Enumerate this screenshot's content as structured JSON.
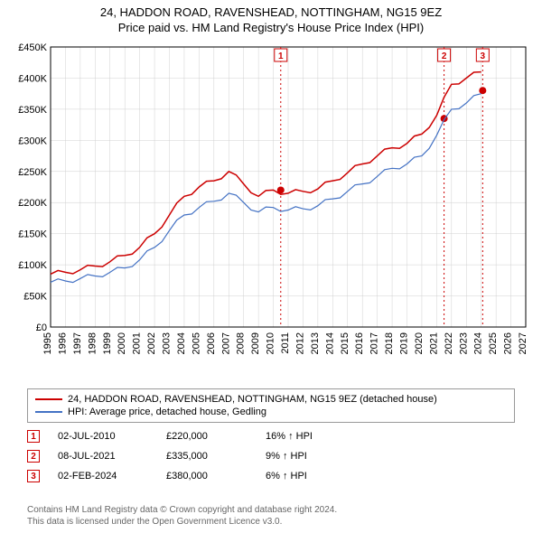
{
  "title_line1": "24, HADDON ROAD, RAVENSHEAD, NOTTINGHAM, NG15 9EZ",
  "title_line2": "Price paid vs. HM Land Registry's House Price Index (HPI)",
  "chart": {
    "type": "line",
    "background_color": "#ffffff",
    "grid_color": "#d0d0d0",
    "axis_color": "#000000",
    "label_fontsize": 11,
    "x": {
      "min": 1995,
      "max": 2027,
      "ticks": [
        1995,
        1996,
        1997,
        1998,
        1999,
        2000,
        2001,
        2002,
        2003,
        2004,
        2005,
        2006,
        2007,
        2008,
        2009,
        2010,
        2011,
        2012,
        2013,
        2014,
        2015,
        2016,
        2017,
        2018,
        2019,
        2020,
        2021,
        2022,
        2023,
        2024,
        2025,
        2026,
        2027
      ]
    },
    "y": {
      "min": 0,
      "max": 450000,
      "step": 50000,
      "ticks": [
        "£0",
        "£50K",
        "£100K",
        "£150K",
        "£200K",
        "£250K",
        "£300K",
        "£350K",
        "£400K",
        "£450K"
      ]
    },
    "series": [
      {
        "name": "24, HADDON ROAD, RAVENSHEAD, NOTTINGHAM, NG15 9EZ (detached house)",
        "color": "#cc0000",
        "width": 1.5,
        "data": [
          [
            1995,
            85000
          ],
          [
            1996,
            88000
          ],
          [
            1997,
            92000
          ],
          [
            1998,
            98000
          ],
          [
            1999,
            105000
          ],
          [
            2000,
            115000
          ],
          [
            2001,
            128000
          ],
          [
            2002,
            150000
          ],
          [
            2003,
            180000
          ],
          [
            2004,
            210000
          ],
          [
            2005,
            225000
          ],
          [
            2006,
            235000
          ],
          [
            2007,
            250000
          ],
          [
            2008,
            230000
          ],
          [
            2009,
            210000
          ],
          [
            2010,
            220000
          ],
          [
            2011,
            215000
          ],
          [
            2012,
            218000
          ],
          [
            2013,
            222000
          ],
          [
            2014,
            235000
          ],
          [
            2015,
            248000
          ],
          [
            2016,
            262000
          ],
          [
            2017,
            275000
          ],
          [
            2018,
            288000
          ],
          [
            2019,
            295000
          ],
          [
            2020,
            310000
          ],
          [
            2021,
            340000
          ],
          [
            2022,
            390000
          ],
          [
            2023,
            400000
          ],
          [
            2024,
            410000
          ]
        ]
      },
      {
        "name": "HPI: Average price, detached house, Gedling",
        "color": "#4472c4",
        "width": 1.2,
        "data": [
          [
            1995,
            72000
          ],
          [
            1996,
            74000
          ],
          [
            1997,
            78000
          ],
          [
            1998,
            82000
          ],
          [
            1999,
            88000
          ],
          [
            2000,
            95000
          ],
          [
            2001,
            108000
          ],
          [
            2002,
            128000
          ],
          [
            2003,
            155000
          ],
          [
            2004,
            180000
          ],
          [
            2005,
            192000
          ],
          [
            2006,
            202000
          ],
          [
            2007,
            215000
          ],
          [
            2008,
            200000
          ],
          [
            2009,
            185000
          ],
          [
            2010,
            192000
          ],
          [
            2011,
            188000
          ],
          [
            2012,
            190000
          ],
          [
            2013,
            195000
          ],
          [
            2014,
            206000
          ],
          [
            2015,
            218000
          ],
          [
            2016,
            230000
          ],
          [
            2017,
            242000
          ],
          [
            2018,
            255000
          ],
          [
            2019,
            262000
          ],
          [
            2020,
            275000
          ],
          [
            2021,
            308000
          ],
          [
            2022,
            350000
          ],
          [
            2023,
            360000
          ],
          [
            2024,
            375000
          ]
        ]
      }
    ],
    "sale_markers": [
      {
        "n": "1",
        "year": 2010.5,
        "value": 220000,
        "color": "#cc0000"
      },
      {
        "n": "2",
        "year": 2021.5,
        "value": 335000,
        "color": "#cc0000"
      },
      {
        "n": "3",
        "year": 2024.1,
        "value": 380000,
        "color": "#cc0000"
      }
    ],
    "marker_box_color": "#cc0000",
    "marker_line_color": "#cc0000",
    "marker_line_dash": "2,3"
  },
  "legend": {
    "items": [
      {
        "color": "#cc0000",
        "label": "24, HADDON ROAD, RAVENSHEAD, NOTTINGHAM, NG15 9EZ (detached house)"
      },
      {
        "color": "#4472c4",
        "label": "HPI: Average price, detached house, Gedling"
      }
    ]
  },
  "sales": [
    {
      "n": "1",
      "date": "02-JUL-2010",
      "price": "£220,000",
      "pct": "16% ↑ HPI"
    },
    {
      "n": "2",
      "date": "08-JUL-2021",
      "price": "£335,000",
      "pct": "9% ↑ HPI"
    },
    {
      "n": "3",
      "date": "02-FEB-2024",
      "price": "£380,000",
      "pct": "6% ↑ HPI"
    }
  ],
  "sale_marker_color": "#cc0000",
  "footer_line1": "Contains HM Land Registry data © Crown copyright and database right 2024.",
  "footer_line2": "This data is licensed under the Open Government Licence v3.0."
}
